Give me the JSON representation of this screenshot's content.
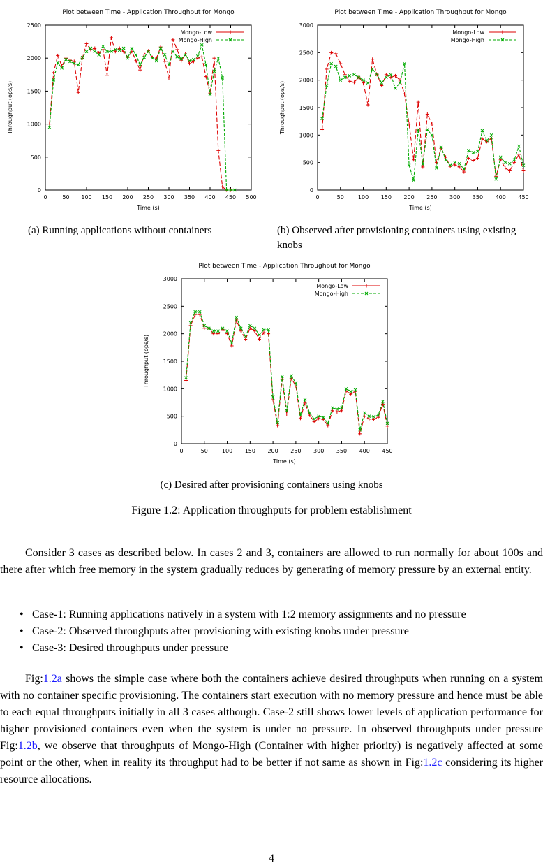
{
  "chart_data": [
    {
      "type": "line",
      "title": "Plot between Time - Application Throughput for Mongo",
      "xlabel": "Time (s)",
      "ylabel": "Throughput (ops/s)",
      "xlim": [
        0,
        500
      ],
      "ylim": [
        0,
        2500
      ],
      "xticks": [
        0,
        50,
        100,
        150,
        200,
        250,
        300,
        350,
        400,
        450,
        500
      ],
      "yticks": [
        0,
        500,
        1000,
        1500,
        2000,
        2500
      ],
      "legend_position": "top-right",
      "series": [
        {
          "name": "Mongo-Low",
          "color": "#dd0000",
          "marker": "plus",
          "x": [
            10,
            20,
            30,
            40,
            50,
            60,
            70,
            80,
            90,
            100,
            110,
            120,
            130,
            140,
            150,
            160,
            170,
            180,
            190,
            200,
            210,
            220,
            230,
            240,
            250,
            260,
            270,
            280,
            290,
            300,
            310,
            320,
            330,
            340,
            350,
            360,
            370,
            380,
            390,
            400,
            410,
            420,
            430,
            440,
            450
          ],
          "y": [
            1000,
            1780,
            2040,
            1880,
            2000,
            1970,
            1950,
            1480,
            2000,
            2220,
            2130,
            2150,
            2080,
            2130,
            1740,
            2310,
            2100,
            2150,
            2100,
            2010,
            2100,
            1960,
            1820,
            2060,
            2110,
            2010,
            2000,
            2170,
            1950,
            1700,
            2280,
            2130,
            1960,
            2060,
            1920,
            1950,
            2000,
            2020,
            1720,
            1470,
            2000,
            600,
            50,
            0,
            0
          ]
        },
        {
          "name": "Mongo-High",
          "color": "#00aa00",
          "marker": "x",
          "x": [
            10,
            20,
            30,
            40,
            50,
            60,
            70,
            80,
            90,
            100,
            110,
            120,
            130,
            140,
            150,
            160,
            170,
            180,
            190,
            200,
            210,
            220,
            230,
            240,
            250,
            260,
            270,
            280,
            290,
            300,
            310,
            320,
            330,
            340,
            350,
            360,
            370,
            380,
            390,
            400,
            410,
            420,
            430,
            440,
            450,
            460
          ],
          "y": [
            950,
            1670,
            1930,
            1850,
            1980,
            1950,
            1920,
            1900,
            2010,
            2100,
            2150,
            2100,
            2050,
            2180,
            2100,
            2100,
            2130,
            2120,
            2150,
            2000,
            2150,
            2050,
            1900,
            2010,
            2100,
            2000,
            1960,
            2150,
            2050,
            1900,
            2100,
            2020,
            1990,
            2050,
            1960,
            1980,
            2030,
            2200,
            1900,
            1450,
            1800,
            2000,
            1700,
            0,
            0,
            0
          ]
        }
      ]
    },
    {
      "type": "line",
      "title": "Plot between Time - Application Throughput for Mongo",
      "xlabel": "Time (s)",
      "ylabel": "Throughput (ops/s)",
      "xlim": [
        0,
        450
      ],
      "ylim": [
        0,
        3000
      ],
      "xticks": [
        0,
        50,
        100,
        150,
        200,
        250,
        300,
        350,
        400,
        450
      ],
      "yticks": [
        0,
        500,
        1000,
        1500,
        2000,
        2500,
        3000
      ],
      "legend_position": "top-right",
      "series": [
        {
          "name": "Mongo-Low",
          "color": "#dd0000",
          "marker": "plus",
          "x": [
            10,
            20,
            30,
            40,
            50,
            60,
            70,
            80,
            90,
            100,
            110,
            120,
            130,
            140,
            150,
            160,
            170,
            180,
            190,
            200,
            210,
            220,
            230,
            240,
            250,
            260,
            270,
            280,
            290,
            300,
            310,
            320,
            330,
            340,
            350,
            360,
            370,
            380,
            390,
            400,
            410,
            420,
            430,
            440,
            450
          ],
          "y": [
            1100,
            2200,
            2500,
            2480,
            2300,
            2100,
            1980,
            1960,
            2050,
            1950,
            1550,
            2380,
            2100,
            1900,
            2100,
            2050,
            2080,
            2000,
            1750,
            1200,
            550,
            1600,
            420,
            1380,
            1200,
            500,
            760,
            600,
            430,
            460,
            420,
            330,
            580,
            540,
            580,
            930,
            880,
            940,
            250,
            550,
            400,
            350,
            500,
            650,
            350
          ]
        },
        {
          "name": "Mongo-High",
          "color": "#00aa00",
          "marker": "x",
          "x": [
            10,
            20,
            30,
            40,
            50,
            60,
            70,
            80,
            90,
            100,
            110,
            120,
            130,
            140,
            150,
            160,
            170,
            180,
            190,
            200,
            210,
            220,
            230,
            240,
            250,
            260,
            270,
            280,
            290,
            300,
            310,
            320,
            330,
            340,
            350,
            360,
            370,
            380,
            390,
            400,
            410,
            420,
            430,
            440,
            450
          ],
          "y": [
            1300,
            1900,
            2300,
            2250,
            2000,
            2050,
            2080,
            2100,
            2050,
            2000,
            1950,
            2200,
            2100,
            1950,
            2050,
            2100,
            1850,
            1950,
            2300,
            450,
            180,
            1100,
            470,
            1100,
            1000,
            400,
            780,
            550,
            450,
            500,
            480,
            380,
            720,
            680,
            700,
            1080,
            900,
            1000,
            200,
            600,
            500,
            480,
            550,
            800,
            450
          ]
        }
      ]
    },
    {
      "type": "line",
      "title": "Plot between Time - Application Throughput for Mongo",
      "xlabel": "Time (s)",
      "ylabel": "Throughput (ops/s)",
      "xlim": [
        0,
        450
      ],
      "ylim": [
        0,
        3000
      ],
      "xticks": [
        0,
        50,
        100,
        150,
        200,
        250,
        300,
        350,
        400,
        450
      ],
      "yticks": [
        0,
        500,
        1000,
        1500,
        2000,
        2500,
        3000
      ],
      "legend_position": "top-right",
      "series": [
        {
          "name": "Mongo-Low",
          "color": "#dd0000",
          "marker": "plus",
          "x": [
            10,
            20,
            30,
            40,
            50,
            60,
            70,
            80,
            90,
            100,
            110,
            120,
            130,
            140,
            150,
            160,
            170,
            180,
            190,
            200,
            210,
            220,
            230,
            240,
            250,
            260,
            270,
            280,
            290,
            300,
            310,
            320,
            330,
            340,
            350,
            360,
            370,
            380,
            390,
            400,
            410,
            420,
            430,
            440,
            450
          ],
          "y": [
            1150,
            2150,
            2350,
            2350,
            2100,
            2100,
            2000,
            2000,
            2080,
            2000,
            1780,
            2250,
            2050,
            1900,
            2100,
            2050,
            1900,
            2020,
            2000,
            800,
            330,
            1170,
            540,
            1190,
            1050,
            460,
            740,
            520,
            400,
            460,
            440,
            330,
            600,
            580,
            600,
            960,
            900,
            950,
            180,
            500,
            450,
            440,
            480,
            720,
            320
          ]
        },
        {
          "name": "Mongo-High",
          "color": "#00aa00",
          "marker": "x",
          "x": [
            10,
            20,
            30,
            40,
            50,
            60,
            70,
            80,
            90,
            100,
            110,
            120,
            130,
            140,
            150,
            160,
            170,
            180,
            190,
            200,
            210,
            220,
            230,
            240,
            250,
            260,
            270,
            280,
            290,
            300,
            310,
            320,
            330,
            340,
            350,
            360,
            370,
            380,
            390,
            400,
            410,
            420,
            430,
            440,
            450
          ],
          "y": [
            1200,
            2200,
            2400,
            2400,
            2150,
            2100,
            2050,
            2050,
            2100,
            2050,
            1830,
            2300,
            2100,
            1950,
            2150,
            2100,
            1980,
            2070,
            2070,
            850,
            380,
            1220,
            600,
            1240,
            1100,
            520,
            800,
            560,
            450,
            500,
            480,
            370,
            650,
            630,
            650,
            1000,
            950,
            980,
            250,
            560,
            500,
            490,
            520,
            770,
            370
          ]
        }
      ]
    }
  ],
  "captions": {
    "a": "(a) Running applications without containers",
    "b": "(b) Observed after provisioning containers using existing knobs",
    "c": "(c) Desired after provisioning containers using knobs",
    "figure": "Figure 1.2: Application throughputs for problem establishment"
  },
  "body": {
    "paragraph1": "Consider 3 cases as described below. In cases 2 and 3, containers are allowed to run normally for about 100s and there after which free memory in the system gradually reduces by generating of memory pressure by an external entity.",
    "bullets": [
      "Case-1: Running applications natively in a system with 1:2 memory assignments and no pressure",
      "Case-2: Observed throughputs after provisioning with existing knobs under pressure",
      "Case-3: Desired throughputs under pressure"
    ],
    "p2_prefix": "Fig:",
    "p2_ref_a": "1.2a",
    "p2_part1": " shows the simple case where both the containers achieve desired throughputs when running on a system with no container specific provisioning. The containers start execution with no memory pressure and hence must be able to each equal throughputs initially in all 3 cases although. Case-2 still shows lower levels of application performance for higher provisioned containers even when the system is under no pressure. In observed throughputs under pressure Fig:",
    "p2_ref_b": "1.2b",
    "p2_part2": ", we observe that throughputs of Mongo-High (Container with higher priority) is negatively affected at some point or the other, when in reality its throughput had to be better if not same as shown in Fig:",
    "p2_ref_c": "1.2c",
    "p2_part3": " considering its higher resource allocations."
  },
  "page_number": "4"
}
